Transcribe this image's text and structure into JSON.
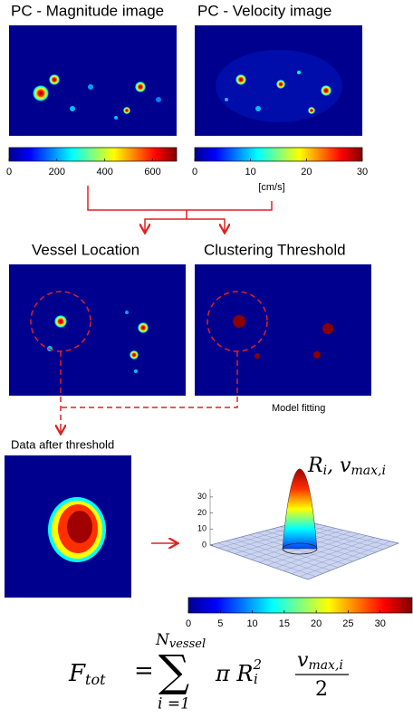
{
  "magnitude": {
    "title": "PC - Magnitude image",
    "colorbar": {
      "range": [
        0,
        700
      ],
      "ticks": [
        0,
        200,
        400,
        600
      ]
    }
  },
  "velocity": {
    "title": "PC - Velocity image",
    "colorbar": {
      "range": [
        0,
        30
      ],
      "ticks": [
        0,
        10,
        20,
        30
      ]
    },
    "unit": "[cm/s]"
  },
  "vessel_location": {
    "title": "Vessel Location"
  },
  "clustering": {
    "title": "Clustering Threshold"
  },
  "model_fitting": {
    "title": "Model fitting",
    "label": {
      "r": "R",
      "r_sub": "i",
      "v": ", v",
      "v_sub": "max,i"
    },
    "zrange": [
      0,
      35
    ],
    "zticks": [
      0,
      10,
      20,
      30
    ]
  },
  "data_after_threshold": {
    "title": "Data after threshold"
  },
  "bottom_colorbar": {
    "range": [
      0,
      35
    ],
    "ticks": [
      0,
      5,
      10,
      15,
      20,
      25,
      30
    ]
  },
  "formula": {
    "f": "F",
    "f_sub": "tot",
    "eq": "=",
    "sigma": "∑",
    "upper": "N",
    "upper_sub": "vessel",
    "lower": "i =1",
    "pi_r": "π R",
    "r_sub": "i",
    "r_sup": "2",
    "num": "v",
    "num_sub": "max,i",
    "den": "2"
  }
}
